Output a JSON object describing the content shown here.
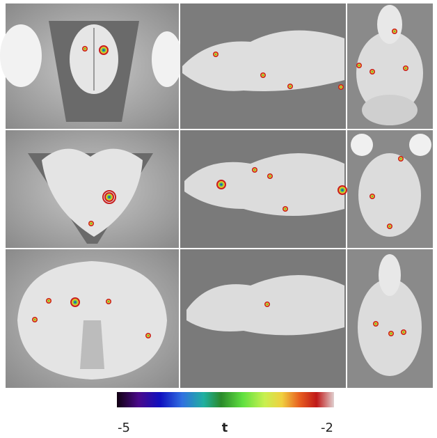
{
  "colorbar": {
    "min": -5,
    "label": "t",
    "max": -2
  }
}
